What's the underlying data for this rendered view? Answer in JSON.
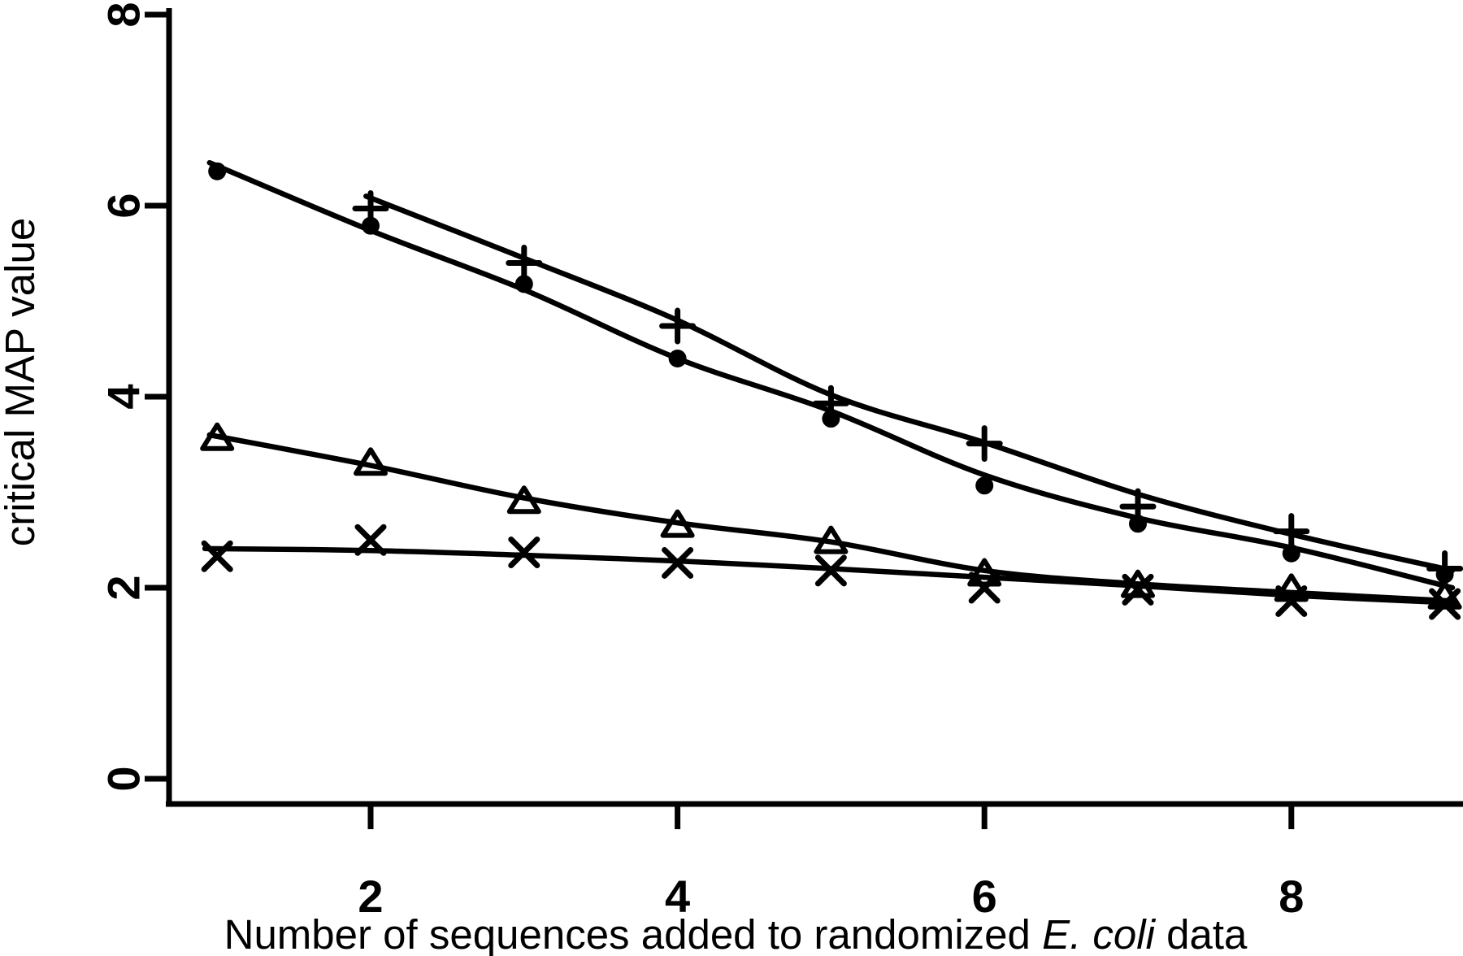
{
  "figure": {
    "background": "#ffffff",
    "ink_color": "#000000"
  },
  "chart_data": {
    "type": "scatter",
    "title": "",
    "xlabel": "Number of sequences added to randomized E. coli data",
    "xlabel_prefix": "Number of sequences added to randomized ",
    "xlabel_italic": "E. coli",
    "xlabel_suffix": " data",
    "ylabel": "critical MAP value",
    "xlim": [
      0.69,
      9.12
    ],
    "ylim": [
      -0.27,
      8.05
    ],
    "x_ticks": [
      2,
      4,
      6,
      8
    ],
    "y_ticks": [
      0,
      2,
      4,
      6,
      8
    ],
    "grid": false,
    "legend_position": "none",
    "series": [
      {
        "name": "plus",
        "marker": "plus",
        "x": [
          2,
          3,
          4,
          5,
          6,
          7,
          8,
          9
        ],
        "y": [
          5.97,
          5.4,
          4.74,
          3.93,
          3.51,
          2.85,
          2.59,
          2.2
        ],
        "fit_x": [
          1.97,
          3,
          4,
          5,
          6,
          7,
          8,
          9.05
        ],
        "fit_y": [
          6.1,
          5.45,
          4.8,
          4.02,
          3.52,
          2.98,
          2.56,
          2.18
        ]
      },
      {
        "name": "filled-circle",
        "marker": "circle",
        "x": [
          1,
          2,
          3,
          4,
          5,
          6,
          7,
          8,
          9
        ],
        "y": [
          6.36,
          5.79,
          5.18,
          4.4,
          3.77,
          3.07,
          2.67,
          2.36,
          2.14
        ],
        "fit_x": [
          0.95,
          2,
          3,
          4,
          5,
          6,
          7,
          8,
          9.05
        ],
        "fit_y": [
          6.45,
          5.74,
          5.12,
          4.4,
          3.85,
          3.18,
          2.73,
          2.42,
          2.0
        ]
      },
      {
        "name": "open-triangle",
        "marker": "triangle",
        "x": [
          1,
          2,
          3,
          4,
          5,
          6,
          7,
          8,
          9
        ],
        "y": [
          3.56,
          3.3,
          2.9,
          2.65,
          2.48,
          2.14,
          2.02,
          1.98,
          1.9
        ],
        "fit_x": [
          0.95,
          2,
          3,
          4,
          5,
          6,
          7,
          8,
          9.07
        ],
        "fit_y": [
          3.6,
          3.28,
          2.94,
          2.68,
          2.48,
          2.18,
          2.04,
          1.95,
          1.86
        ]
      },
      {
        "name": "cross",
        "marker": "cross",
        "x": [
          1,
          2,
          3,
          4,
          5,
          6,
          7,
          8,
          9
        ],
        "y": [
          2.33,
          2.5,
          2.37,
          2.26,
          2.18,
          2.0,
          1.98,
          1.86,
          1.83
        ],
        "fit_x": [
          0.92,
          2,
          3,
          4,
          5,
          6,
          7,
          8,
          9.07
        ],
        "fit_y": [
          2.41,
          2.39,
          2.34,
          2.28,
          2.2,
          2.11,
          2.02,
          1.92,
          1.84
        ]
      }
    ]
  }
}
